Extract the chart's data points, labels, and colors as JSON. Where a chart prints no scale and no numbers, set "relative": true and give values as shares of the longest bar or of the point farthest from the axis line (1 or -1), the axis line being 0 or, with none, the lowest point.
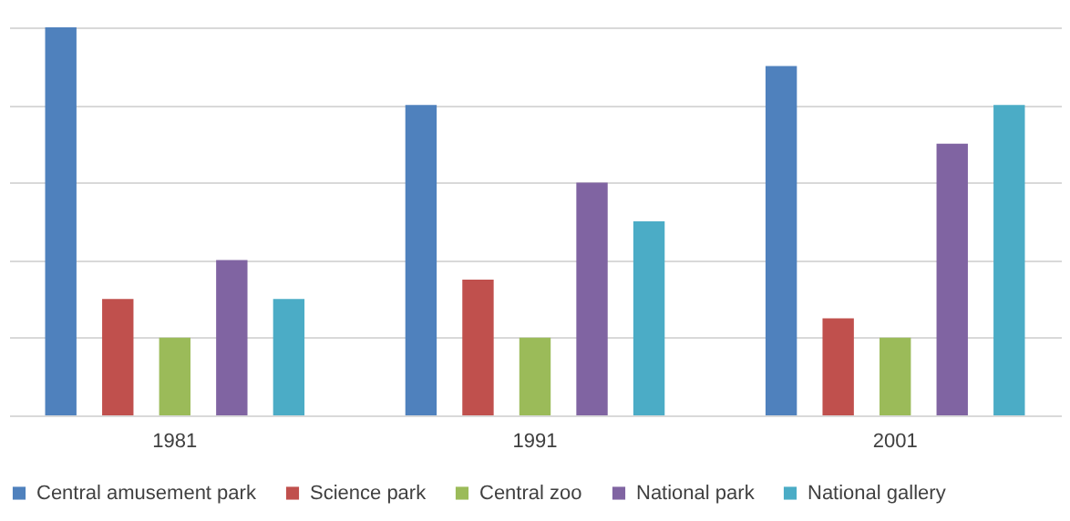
{
  "chart_data": {
    "type": "bar",
    "relative": true,
    "grid": "y",
    "legend": "bottom",
    "categories": [
      "1981",
      "1991",
      "2001"
    ],
    "series": [
      {
        "name": "Central amusement park",
        "color": "#4f81bd",
        "values": [
          1,
          0.8,
          0.9
        ]
      },
      {
        "name": "Science park",
        "color": "#c0504d",
        "values": [
          0.3,
          0.35,
          0.25
        ]
      },
      {
        "name": "Central zoo",
        "color": "#9bbb59",
        "values": [
          0.2,
          0.2,
          0.2
        ]
      },
      {
        "name": "National park",
        "color": "#8064a2",
        "values": [
          0.4,
          0.6,
          0.7
        ]
      },
      {
        "name": "National gallery",
        "color": "#4bacc6",
        "values": [
          0.3,
          0.5,
          0.8
        ]
      }
    ]
  }
}
